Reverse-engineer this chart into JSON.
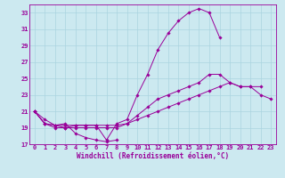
{
  "xlabel": "Windchill (Refroidissement éolien,°C)",
  "xlim": [
    -0.5,
    23.5
  ],
  "ylim": [
    17,
    34
  ],
  "yticks": [
    17,
    19,
    21,
    23,
    25,
    27,
    29,
    31,
    33
  ],
  "xticks": [
    0,
    1,
    2,
    3,
    4,
    5,
    6,
    7,
    8,
    9,
    10,
    11,
    12,
    13,
    14,
    15,
    16,
    17,
    18,
    19,
    20,
    21,
    22,
    23
  ],
  "bg_color": "#cce9f0",
  "grid_color": "#aad4e0",
  "line_color": "#990099",
  "lines": [
    [
      21.0,
      20.0,
      19.3,
      19.5,
      18.3,
      17.8,
      17.5,
      17.3,
      17.5,
      null,
      null,
      null,
      null,
      null,
      null,
      null,
      null,
      null,
      null,
      null,
      null,
      null,
      null,
      null
    ],
    [
      21.0,
      19.5,
      19.3,
      19.3,
      19.3,
      19.3,
      19.3,
      17.5,
      19.5,
      20.0,
      23.0,
      25.5,
      28.5,
      30.5,
      32.0,
      33.0,
      33.5,
      33.0,
      30.0,
      null,
      null,
      null,
      null,
      null
    ],
    [
      21.0,
      19.5,
      19.3,
      19.0,
      19.3,
      19.3,
      19.3,
      19.3,
      19.3,
      19.5,
      20.5,
      21.5,
      22.5,
      23.0,
      23.5,
      24.0,
      24.5,
      25.5,
      25.5,
      24.5,
      24.0,
      24.0,
      24.0,
      null
    ],
    [
      21.0,
      19.5,
      19.0,
      19.0,
      19.0,
      19.0,
      19.0,
      19.0,
      19.0,
      19.5,
      20.0,
      20.5,
      21.0,
      21.5,
      22.0,
      22.5,
      23.0,
      23.5,
      24.0,
      24.5,
      24.0,
      24.0,
      23.0,
      22.5
    ]
  ]
}
